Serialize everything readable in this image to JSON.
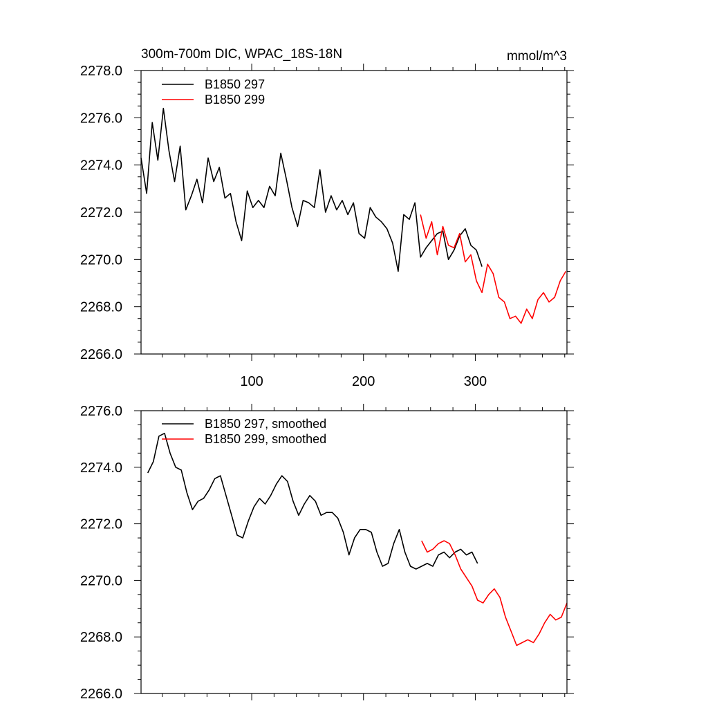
{
  "figure": {
    "title": "300m-700m DIC, WPAC_18S-18N",
    "units": "mmol/m^3"
  },
  "chart_data": [
    {
      "type": "line",
      "title": "300m-700m DIC, WPAC_18S-18N",
      "units_label": "mmol/m^3",
      "xlabel": "",
      "ylabel": "",
      "xlim": [
        1,
        382
      ],
      "ylim": [
        2266.0,
        2278.0
      ],
      "x_ticks": [
        100,
        200,
        300
      ],
      "x_tick_labels": [
        "100",
        "200",
        "300"
      ],
      "y_ticks": [
        2266.0,
        2268.0,
        2270.0,
        2272.0,
        2274.0,
        2276.0,
        2278.0
      ],
      "y_tick_labels": [
        "2266.0",
        "2268.0",
        "2270.0",
        "2272.0",
        "2274.0",
        "2276.0",
        "2278.0"
      ],
      "legend_position": "top-left",
      "series": [
        {
          "name": "B1850 297",
          "color": "#000000",
          "x": [
            1,
            6,
            11,
            16,
            21,
            26,
            31,
            36,
            41,
            46,
            51,
            56,
            61,
            66,
            71,
            76,
            81,
            86,
            91,
            96,
            101,
            106,
            111,
            116,
            121,
            126,
            131,
            136,
            141,
            146,
            151,
            156,
            161,
            166,
            171,
            176,
            181,
            186,
            191,
            196,
            201,
            206,
            211,
            216,
            221,
            226,
            231,
            236,
            241,
            246,
            251,
            256,
            261,
            266,
            271,
            276,
            281,
            286,
            291,
            296,
            301,
            306
          ],
          "values": [
            2274.3,
            2272.8,
            2275.8,
            2274.2,
            2276.4,
            2274.6,
            2273.3,
            2274.8,
            2272.1,
            2272.7,
            2273.4,
            2272.4,
            2274.3,
            2273.3,
            2273.9,
            2272.6,
            2272.8,
            2271.6,
            2270.8,
            2272.9,
            2272.2,
            2272.5,
            2272.2,
            2273.1,
            2272.7,
            2274.5,
            2273.4,
            2272.2,
            2271.4,
            2272.5,
            2272.4,
            2272.2,
            2273.8,
            2272.0,
            2272.7,
            2272.1,
            2272.5,
            2271.9,
            2272.4,
            2271.1,
            2270.9,
            2272.2,
            2271.8,
            2271.6,
            2271.3,
            2270.7,
            2269.5,
            2271.9,
            2271.7,
            2272.4,
            2270.1,
            2270.5,
            2270.8,
            2271.1,
            2271.2,
            2270.0,
            2270.4,
            2271.0,
            2271.3,
            2270.6,
            2270.4,
            2269.7
          ]
        },
        {
          "name": "B1850 299",
          "color": "#ff0000",
          "x": [
            251,
            256,
            261,
            266,
            271,
            276,
            281,
            286,
            291,
            296,
            301,
            306,
            311,
            316,
            321,
            326,
            331,
            336,
            341,
            346,
            351,
            356,
            361,
            366,
            371,
            376,
            381
          ],
          "values": [
            2271.9,
            2270.9,
            2271.6,
            2270.2,
            2271.4,
            2270.6,
            2270.5,
            2271.1,
            2269.9,
            2270.2,
            2269.1,
            2268.6,
            2269.8,
            2269.4,
            2268.4,
            2268.2,
            2267.5,
            2267.6,
            2267.3,
            2267.9,
            2267.5,
            2268.3,
            2268.6,
            2268.2,
            2268.4,
            2269.1,
            2269.5
          ]
        }
      ]
    },
    {
      "type": "line",
      "title": "",
      "xlabel": "",
      "ylabel": "",
      "xlim": [
        1,
        382
      ],
      "ylim": [
        2266.0,
        2276.0
      ],
      "x_ticks": [
        100,
        200,
        300
      ],
      "x_tick_labels": [],
      "y_ticks": [
        2266.0,
        2268.0,
        2270.0,
        2272.0,
        2274.0,
        2276.0
      ],
      "y_tick_labels": [
        "2266.0",
        "2268.0",
        "2270.0",
        "2272.0",
        "2274.0",
        "2276.0"
      ],
      "legend_position": "top-left",
      "series": [
        {
          "name": "B1850 297, smoothed",
          "color": "#000000",
          "x": [
            7,
            12,
            17,
            22,
            27,
            32,
            37,
            42,
            47,
            52,
            57,
            62,
            67,
            72,
            77,
            82,
            87,
            92,
            97,
            102,
            107,
            112,
            117,
            122,
            127,
            132,
            137,
            142,
            147,
            152,
            157,
            162,
            167,
            172,
            177,
            182,
            187,
            192,
            197,
            202,
            207,
            212,
            217,
            222,
            227,
            232,
            237,
            242,
            247,
            252,
            257,
            262,
            267,
            272,
            277,
            282,
            287,
            292,
            297,
            302
          ],
          "values": [
            2273.8,
            2274.2,
            2275.1,
            2275.2,
            2274.5,
            2274.0,
            2273.9,
            2273.1,
            2272.5,
            2272.8,
            2272.9,
            2273.2,
            2273.6,
            2273.7,
            2273.0,
            2272.3,
            2271.6,
            2271.5,
            2272.1,
            2272.6,
            2272.9,
            2272.7,
            2273.0,
            2273.4,
            2273.7,
            2273.5,
            2272.8,
            2272.3,
            2272.7,
            2273.0,
            2272.8,
            2272.3,
            2272.4,
            2272.4,
            2272.2,
            2271.7,
            2270.9,
            2271.5,
            2271.8,
            2271.8,
            2271.7,
            2271.0,
            2270.5,
            2270.6,
            2271.3,
            2271.8,
            2271.0,
            2270.5,
            2270.4,
            2270.5,
            2270.6,
            2270.5,
            2270.9,
            2271.0,
            2270.8,
            2271.0,
            2271.1,
            2270.9,
            2271.0,
            2270.6
          ]
        },
        {
          "name": "B1850 299, smoothed",
          "color": "#ff0000",
          "x": [
            252,
            257,
            262,
            267,
            272,
            277,
            282,
            287,
            292,
            297,
            302,
            307,
            312,
            317,
            322,
            327,
            332,
            337,
            342,
            347,
            352,
            357,
            362,
            367,
            372,
            377,
            382
          ],
          "values": [
            2271.4,
            2271.0,
            2271.1,
            2271.3,
            2271.4,
            2271.3,
            2270.9,
            2270.4,
            2270.1,
            2269.8,
            2269.3,
            2269.2,
            2269.5,
            2269.7,
            2269.4,
            2268.7,
            2268.2,
            2267.7,
            2267.8,
            2267.9,
            2267.8,
            2268.1,
            2268.5,
            2268.8,
            2268.6,
            2268.7,
            2269.2
          ]
        }
      ]
    }
  ]
}
